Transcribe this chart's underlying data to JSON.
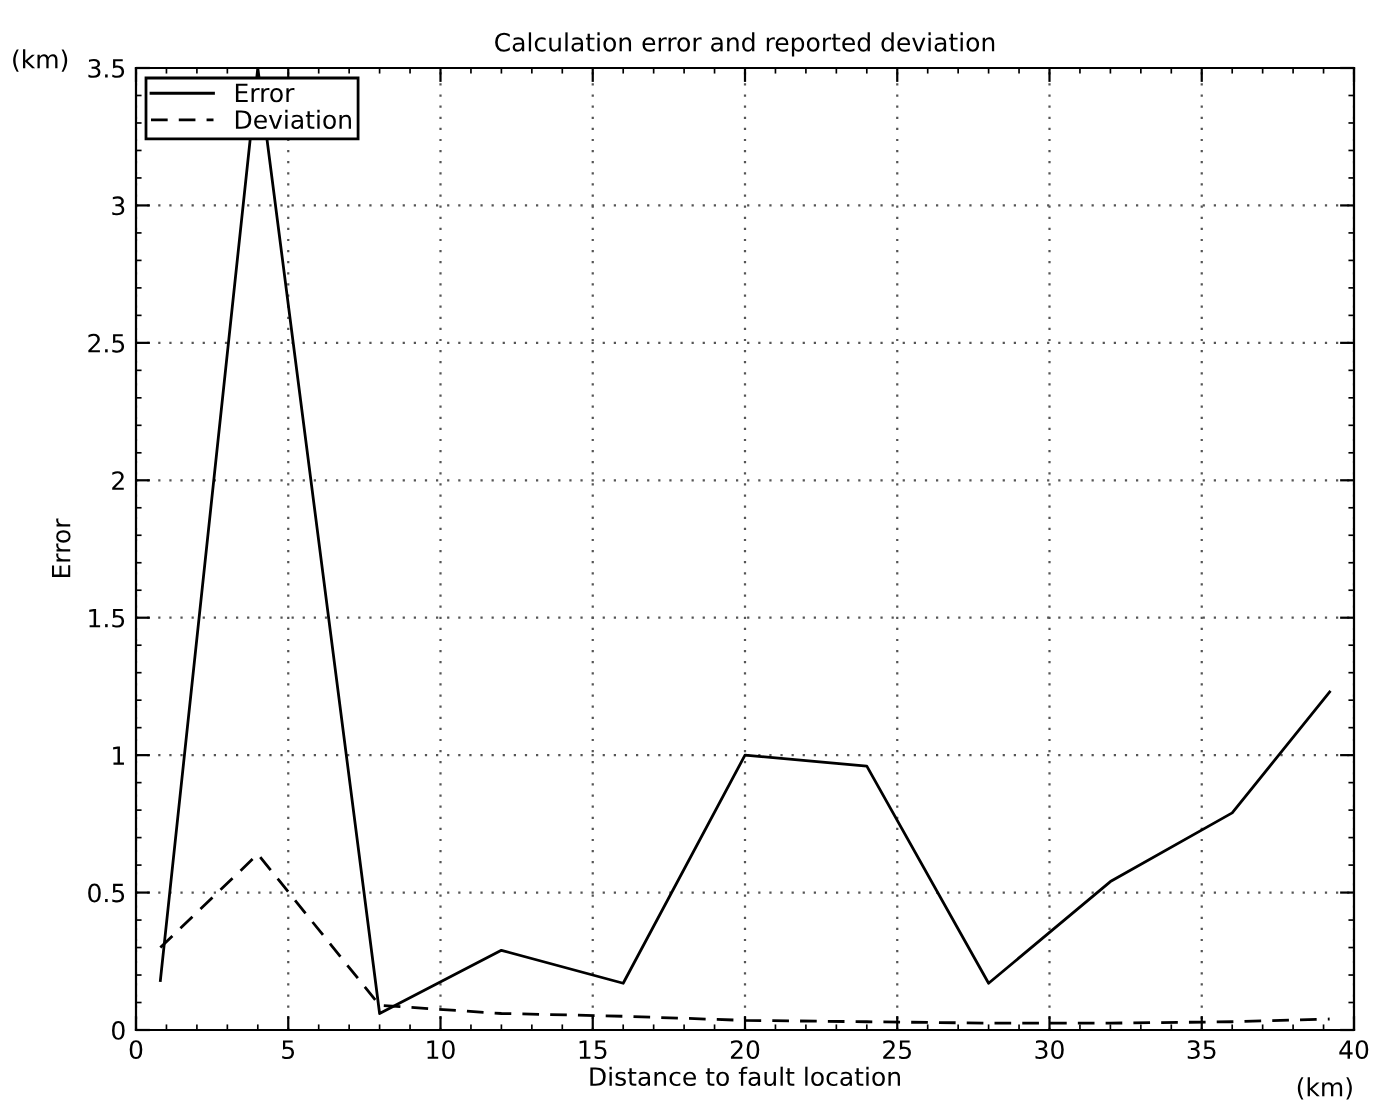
{
  "chart_data": {
    "type": "line",
    "title": "Calculation error and reported deviation",
    "xlabel": "Distance to fault location",
    "ylabel": "Error",
    "annotations": [
      "(km)",
      "(km)"
    ],
    "series": [
      {
        "name": "Error",
        "color": "#000000",
        "line_style": "solid",
        "x": [
          0.8,
          4,
          8,
          12,
          16,
          20,
          24,
          28,
          32,
          36,
          39.2
        ],
        "values": [
          0.18,
          3.5,
          0.06,
          0.29,
          0.17,
          1.0,
          0.96,
          0.17,
          0.54,
          0.79,
          1.23
        ]
      },
      {
        "name": "Deviation",
        "color": "#000000",
        "line_style": "dashed",
        "x": [
          0.8,
          4,
          8,
          12,
          16,
          20,
          24,
          28,
          32,
          36,
          39.2
        ],
        "values": [
          0.3,
          0.64,
          0.09,
          0.06,
          0.05,
          0.035,
          0.03,
          0.025,
          0.025,
          0.03,
          0.04
        ]
      }
    ],
    "xlim": [
      0,
      40
    ],
    "xticks": [
      0,
      5,
      10,
      15,
      20,
      25,
      30,
      35,
      40
    ],
    "ylim": [
      0,
      3.5
    ],
    "yticks": [
      0,
      {
        "value": 0.5,
        "label": "0.5"
      },
      1,
      {
        "value": 1.5,
        "label": "1.5"
      },
      2,
      {
        "value": 2.5,
        "label": "2.5"
      },
      3,
      {
        "value": 3.5,
        "label": "3.5"
      }
    ],
    "grid": true,
    "legend": "top left"
  }
}
